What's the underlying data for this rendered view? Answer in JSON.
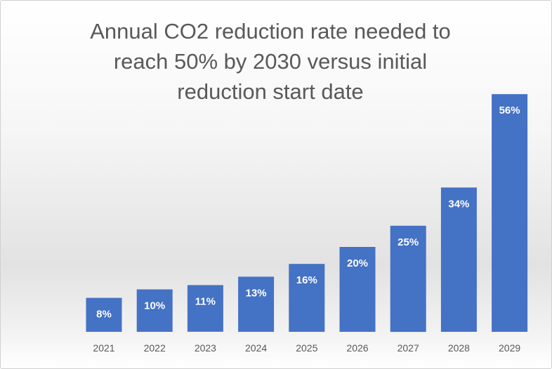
{
  "chart_data": {
    "type": "bar",
    "title_lines": [
      "Annual CO2 reduction rate needed to",
      "reach 50% by 2030 versus initial",
      "reduction start date"
    ],
    "categories": [
      "2021",
      "2022",
      "2023",
      "2024",
      "2025",
      "2026",
      "2027",
      "2028",
      "2029"
    ],
    "values": [
      8,
      10,
      11,
      13,
      16,
      20,
      25,
      34,
      56
    ],
    "data_labels": [
      "8%",
      "10%",
      "11%",
      "13%",
      "16%",
      "20%",
      "25%",
      "34%",
      "56%"
    ],
    "xlabel": "",
    "ylabel": "",
    "ylim": [
      0,
      60
    ],
    "grid": false,
    "legend": "none",
    "bar_color": "#4472c4",
    "label_color": "#ffffff",
    "axis_text_color": "#595959"
  }
}
